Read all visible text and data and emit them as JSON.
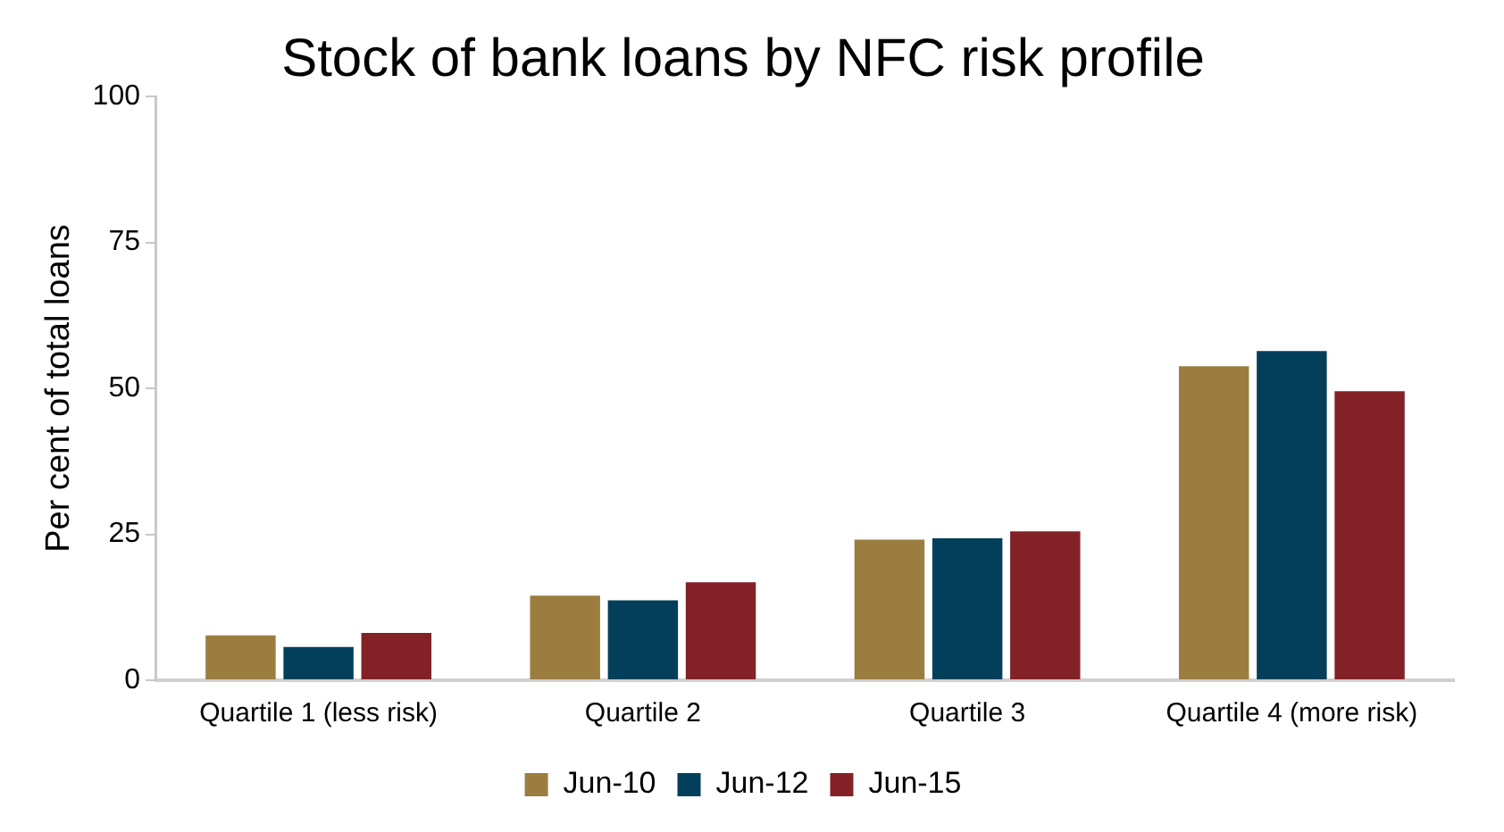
{
  "chart_data": {
    "type": "bar",
    "title": "Stock of bank loans by NFC risk profile",
    "ylabel": "Per cent of total loans",
    "categories": [
      "Quartile 1 (less risk)",
      "Quartile 2",
      "Quartile 3",
      "Quartile 4 (more risk)"
    ],
    "series": [
      {
        "name": "Jun-10",
        "color": "#9b7d40",
        "values": [
          7.7,
          14.5,
          24.1,
          53.8
        ]
      },
      {
        "name": "Jun-12",
        "color": "#033f5a",
        "values": [
          5.7,
          13.7,
          24.3,
          56.4
        ]
      },
      {
        "name": "Jun-15",
        "color": "#832226",
        "values": [
          8.1,
          16.8,
          25.5,
          49.5
        ]
      }
    ],
    "ylim": [
      0,
      100
    ],
    "yticks": [
      0,
      25,
      50,
      75,
      100
    ],
    "grid": false,
    "legend": "bottom"
  }
}
